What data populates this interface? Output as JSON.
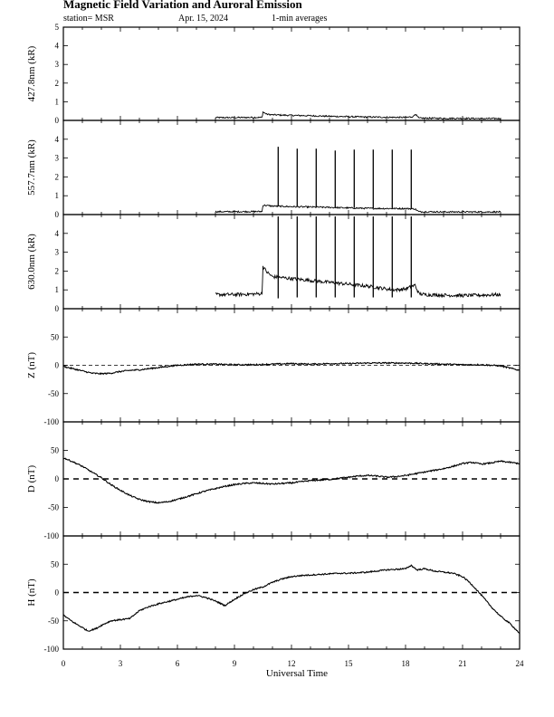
{
  "header": {
    "title": "Magnetic Field Variation and Auroral Emission",
    "station": "station= MSR",
    "date": "Apr. 15, 2024",
    "averaging": "1-min averages"
  },
  "chart_data": {
    "type": "line",
    "xlabel": "Universal Time",
    "xlim": [
      0,
      24
    ],
    "xticks": [
      0,
      3,
      6,
      9,
      12,
      15,
      18,
      21,
      24
    ],
    "panels": [
      {
        "id": "p4278",
        "ylabel": "427.8nm (kR)",
        "ylim": [
          0,
          5
        ],
        "yticks": [
          0,
          1,
          2,
          3,
          4,
          5
        ],
        "zero_line": "none",
        "series": {
          "x": [
            8.0,
            9.0,
            10.0,
            10.45,
            10.5,
            10.7,
            11.0,
            12.0,
            13.0,
            14.0,
            15.0,
            16.0,
            17.0,
            18.0,
            18.4,
            18.5,
            18.7,
            19.0,
            20.0,
            21.0,
            22.0,
            23.0
          ],
          "y": [
            0.15,
            0.15,
            0.16,
            0.16,
            0.45,
            0.33,
            0.3,
            0.27,
            0.25,
            0.22,
            0.2,
            0.18,
            0.17,
            0.16,
            0.2,
            0.35,
            0.12,
            0.12,
            0.11,
            0.11,
            0.1,
            0.1
          ]
        }
      },
      {
        "id": "p5577",
        "ylabel": "557.7nm (kR)",
        "ylim": [
          0,
          5
        ],
        "yticks": [
          0,
          1,
          2,
          3,
          4
        ],
        "zero_line": "none",
        "series": {
          "x": [
            8.0,
            9.0,
            10.0,
            10.45,
            10.5,
            11.0,
            12.0,
            13.0,
            14.0,
            15.0,
            16.0,
            17.0,
            18.0,
            18.5,
            18.7,
            19.0,
            20.0,
            21.0,
            22.0,
            23.0
          ],
          "y": [
            0.15,
            0.15,
            0.16,
            0.16,
            0.5,
            0.45,
            0.42,
            0.4,
            0.38,
            0.35,
            0.33,
            0.32,
            0.32,
            0.3,
            0.15,
            0.15,
            0.14,
            0.14,
            0.14,
            0.14
          ]
        },
        "spikes": {
          "x": [
            11.3,
            12.3,
            13.3,
            14.3,
            15.3,
            16.3,
            17.3,
            18.3
          ],
          "top": [
            3.6,
            3.5,
            3.5,
            3.4,
            3.45,
            3.45,
            3.45,
            3.45
          ],
          "bottom": [
            0.45,
            0.42,
            0.4,
            0.38,
            0.35,
            0.33,
            0.32,
            0.32
          ]
        }
      },
      {
        "id": "p6300",
        "ylabel": "630.0nm (kR)",
        "ylim": [
          0,
          5
        ],
        "yticks": [
          0,
          1,
          2,
          3,
          4
        ],
        "zero_line": "none",
        "series": {
          "x": [
            8.0,
            9.0,
            10.0,
            10.45,
            10.5,
            10.7,
            11.0,
            12.0,
            13.0,
            14.0,
            15.0,
            16.0,
            17.0,
            17.5,
            18.0,
            18.5,
            18.7,
            19.0,
            20.0,
            21.0,
            22.0,
            23.0
          ],
          "y": [
            0.75,
            0.75,
            0.78,
            0.8,
            2.25,
            1.95,
            1.7,
            1.6,
            1.5,
            1.4,
            1.3,
            1.2,
            1.05,
            1.0,
            1.05,
            1.25,
            0.8,
            0.75,
            0.72,
            0.7,
            0.72,
            0.75
          ]
        },
        "spikes": {
          "x": [
            11.3,
            12.3,
            13.3,
            14.3,
            15.3,
            16.3,
            17.3,
            18.3
          ],
          "top": [
            4.9,
            4.9,
            4.9,
            4.9,
            4.9,
            4.9,
            4.9,
            4.9
          ],
          "bottom": [
            0.55,
            0.6,
            0.6,
            0.6,
            0.6,
            0.6,
            0.6,
            0.6
          ]
        }
      },
      {
        "id": "pz",
        "ylabel": "Z (nT)",
        "ylim": [
          -100,
          100
        ],
        "yticks": [
          -100,
          -50,
          0,
          50
        ],
        "zero_line": "dashed-thin",
        "series": {
          "x": [
            0,
            0.5,
            1.0,
            1.5,
            2.0,
            2.5,
            3.0,
            3.5,
            4.0,
            4.5,
            5.0,
            5.5,
            6.0,
            6.5,
            7.0,
            8.0,
            9.0,
            10.0,
            11.0,
            12.0,
            13.0,
            14.0,
            15.0,
            16.0,
            17.0,
            18.0,
            19.0,
            20.0,
            21.0,
            22.0,
            22.5,
            23.0,
            23.5,
            24.0
          ],
          "y": [
            -2,
            -6,
            -10,
            -14,
            -15,
            -14,
            -11,
            -9,
            -8,
            -6,
            -4,
            -2,
            0,
            1,
            2,
            2,
            1,
            1,
            2,
            3,
            2,
            3,
            3,
            4,
            4,
            4,
            3,
            2,
            1,
            1,
            0,
            -1,
            -5,
            -9
          ]
        }
      },
      {
        "id": "pd",
        "ylabel": "D (nT)",
        "ylim": [
          -100,
          100
        ],
        "yticks": [
          -100,
          -50,
          0,
          50
        ],
        "zero_line": "dashed-thick",
        "series": {
          "x": [
            0,
            0.5,
            1.0,
            1.5,
            2.0,
            2.5,
            3.0,
            3.5,
            4.0,
            4.5,
            5.0,
            5.5,
            6.0,
            6.5,
            7.0,
            7.5,
            8.0,
            8.5,
            9.0,
            9.5,
            10.0,
            10.5,
            11.0,
            11.5,
            12.0,
            12.5,
            13.0,
            13.5,
            14.0,
            14.5,
            15.0,
            15.5,
            16.0,
            16.5,
            17.0,
            17.5,
            18.0,
            18.5,
            19.0,
            19.5,
            20.0,
            20.5,
            21.0,
            21.5,
            22.0,
            22.5,
            23.0,
            23.5,
            24.0
          ],
          "y": [
            37,
            30,
            22,
            12,
            2,
            -10,
            -20,
            -29,
            -36,
            -40,
            -42,
            -40,
            -36,
            -31,
            -26,
            -21,
            -17,
            -13,
            -10,
            -8,
            -7,
            -8,
            -9,
            -8,
            -7,
            -5,
            -3,
            -2,
            -1,
            1,
            3,
            5,
            6,
            5,
            3,
            4,
            6,
            9,
            12,
            15,
            18,
            22,
            27,
            29,
            26,
            28,
            31,
            29,
            27
          ]
        }
      },
      {
        "id": "ph",
        "ylabel": "H (nT)",
        "ylim": [
          -100,
          100
        ],
        "yticks": [
          -100,
          -50,
          0,
          50
        ],
        "zero_line": "dashed-thick",
        "series": {
          "x": [
            0,
            0.5,
            1.0,
            1.3,
            1.7,
            2.0,
            2.5,
            3.0,
            3.5,
            4.0,
            4.5,
            5.0,
            5.5,
            6.0,
            6.5,
            7.0,
            7.5,
            8.0,
            8.5,
            9.0,
            9.5,
            10.0,
            10.5,
            11.0,
            11.5,
            12.0,
            12.5,
            13.0,
            13.5,
            14.0,
            14.5,
            15.0,
            15.5,
            16.0,
            16.5,
            17.0,
            17.5,
            18.0,
            18.3,
            18.6,
            19.0,
            19.5,
            20.0,
            20.5,
            21.0,
            21.3,
            21.6,
            22.0,
            22.5,
            23.0,
            23.5,
            24.0
          ],
          "y": [
            -40,
            -52,
            -62,
            -68,
            -64,
            -58,
            -50,
            -48,
            -46,
            -32,
            -25,
            -20,
            -16,
            -12,
            -8,
            -5,
            -9,
            -15,
            -23,
            -12,
            -2,
            5,
            10,
            18,
            24,
            28,
            30,
            31,
            32,
            33,
            34,
            34,
            35,
            36,
            38,
            40,
            41,
            42,
            48,
            40,
            42,
            38,
            36,
            34,
            28,
            20,
            10,
            -5,
            -25,
            -42,
            -55,
            -72
          ]
        }
      }
    ]
  }
}
